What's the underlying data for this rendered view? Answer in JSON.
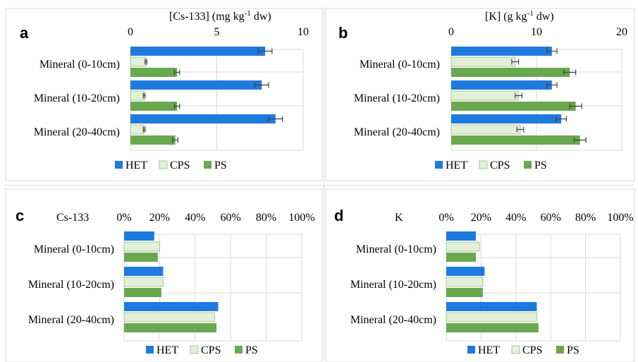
{
  "colors": {
    "HET": "#1f7ae0",
    "CPS": "#e2efd9",
    "PS": "#6aa84f",
    "grid": "#d9d9d9",
    "error": "#404040"
  },
  "chart_data": [
    {
      "panel": "a",
      "type": "bar",
      "title": "[Cs-133] (mg kg-1 dw)",
      "title_main": "[Cs-133] (mg kg",
      "title_sup": "-1",
      "title_tail": " dw)",
      "categories": [
        "Mineral (0-10cm)",
        "Mineral (10-20cm)",
        "Mineral (20-40cm)"
      ],
      "xlim": [
        0,
        10
      ],
      "ticks": [
        "0",
        "5",
        "10"
      ],
      "tick_values": [
        0,
        5,
        10
      ],
      "grid": true,
      "legend_position": "bottom",
      "series": [
        {
          "name": "HET",
          "values": [
            7.8,
            7.6,
            8.4
          ],
          "errors": [
            0.4,
            0.4,
            0.4
          ]
        },
        {
          "name": "CPS",
          "values": [
            0.9,
            0.8,
            0.8
          ],
          "errors": [
            0.05,
            0.05,
            0.05
          ]
        },
        {
          "name": "PS",
          "values": [
            2.7,
            2.7,
            2.6
          ],
          "errors": [
            0.15,
            0.15,
            0.15
          ]
        }
      ]
    },
    {
      "panel": "b",
      "type": "bar",
      "title": "[K] (g kg-1 dw)",
      "title_main": "[K] (g kg",
      "title_sup": "-1",
      "title_tail": " dw)",
      "categories": [
        "Mineral (0-10cm)",
        "Mineral (10-20cm)",
        "Mineral (20-40cm)"
      ],
      "xlim": [
        0,
        20
      ],
      "ticks": [
        "0",
        "10",
        "20"
      ],
      "tick_values": [
        0,
        10,
        20
      ],
      "grid": true,
      "legend_position": "bottom",
      "series": [
        {
          "name": "HET",
          "values": [
            11.8,
            11.8,
            12.9
          ],
          "errors": [
            0.6,
            0.6,
            0.6
          ]
        },
        {
          "name": "CPS",
          "values": [
            7.5,
            7.9,
            8.1
          ],
          "errors": [
            0.4,
            0.4,
            0.4
          ]
        },
        {
          "name": "PS",
          "values": [
            13.9,
            14.6,
            15.1
          ],
          "errors": [
            0.7,
            0.7,
            0.7
          ]
        }
      ]
    },
    {
      "panel": "c",
      "type": "bar",
      "title": "Cs-133",
      "title_main": "Cs-133",
      "categories": [
        "Mineral (0-10cm)",
        "Mineral (10-20cm)",
        "Mineral (20-40cm)"
      ],
      "xlim": [
        0,
        100
      ],
      "ticks": [
        "0%",
        "20%",
        "40%",
        "60%",
        "80%",
        "100%"
      ],
      "tick_values": [
        0,
        20,
        40,
        60,
        80,
        100
      ],
      "grid": true,
      "legend_position": "bottom",
      "series": [
        {
          "name": "HET",
          "values": [
            17,
            22,
            53
          ]
        },
        {
          "name": "CPS",
          "values": [
            20,
            22,
            51
          ]
        },
        {
          "name": "PS",
          "values": [
            19,
            21,
            52
          ]
        }
      ]
    },
    {
      "panel": "d",
      "type": "bar",
      "title": "K",
      "title_main": "K",
      "categories": [
        "Mineral (0-10cm)",
        "Mineral (10-20cm)",
        "Mineral (20-40cm)"
      ],
      "xlim": [
        0,
        100
      ],
      "ticks": [
        "0%",
        "20%",
        "40%",
        "60%",
        "80%",
        "100%"
      ],
      "tick_values": [
        0,
        20,
        40,
        60,
        80,
        100
      ],
      "grid": true,
      "legend_position": "bottom",
      "series": [
        {
          "name": "HET",
          "values": [
            17,
            22,
            52
          ]
        },
        {
          "name": "CPS",
          "values": [
            19,
            21,
            52
          ]
        },
        {
          "name": "PS",
          "values": [
            17,
            21,
            53
          ]
        }
      ]
    }
  ]
}
